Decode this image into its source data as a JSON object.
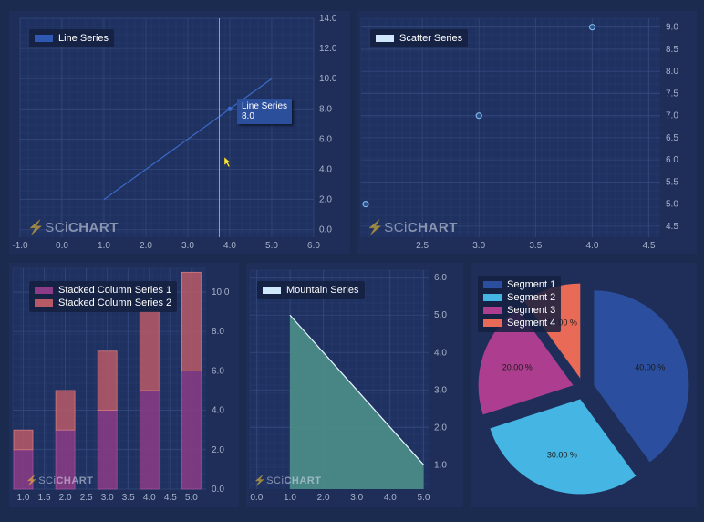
{
  "branding": {
    "logo_thin": "SCi",
    "logo_bold": "CHART"
  },
  "chart_data": [
    {
      "type": "line",
      "legend": [
        "Line Series"
      ],
      "series": [
        {
          "name": "Line Series",
          "x": [
            1.0,
            5.0
          ],
          "y": [
            2.0,
            10.0
          ],
          "color": "#3a6bc7"
        }
      ],
      "xticks": [
        "-1.0",
        "0.0",
        "1.0",
        "2.0",
        "3.0",
        "4.0",
        "5.0",
        "6.0"
      ],
      "yticks": [
        "0.0",
        "2.0",
        "4.0",
        "6.0",
        "8.0",
        "10.0",
        "12.0",
        "14.0"
      ],
      "xlim": [
        -1.0,
        6.0
      ],
      "ylim": [
        -0.5,
        14.0
      ],
      "cursor_x": 3.75,
      "tooltip": {
        "series": "Line Series",
        "value": "8.0"
      },
      "grid": true
    },
    {
      "type": "scatter",
      "legend": [
        "Scatter Series"
      ],
      "series": [
        {
          "name": "Scatter Series",
          "x": [
            2.0,
            3.0,
            4.0
          ],
          "y": [
            5.0,
            7.0,
            9.0
          ],
          "color": "#7fb6e6"
        }
      ],
      "xticks": [
        "2.5",
        "3.0",
        "3.5",
        "4.0",
        "4.5"
      ],
      "yticks": [
        "4.5",
        "5.0",
        "5.5",
        "6.0",
        "6.5",
        "7.0",
        "7.5",
        "8.0",
        "8.5",
        "9.0"
      ],
      "xlim": [
        1.96,
        4.6
      ],
      "ylim": [
        4.25,
        9.2
      ],
      "grid": true
    },
    {
      "type": "bar",
      "stacked": true,
      "legend": [
        "Stacked Column Series 1",
        "Stacked Column Series 2"
      ],
      "x": [
        1.0,
        2.0,
        3.0,
        4.0,
        5.0
      ],
      "series": [
        {
          "name": "Stacked Column Series 1",
          "values": [
            2.0,
            3.0,
            4.0,
            5.0,
            6.0
          ],
          "color": "#8c3b86"
        },
        {
          "name": "Stacked Column Series 2",
          "values": [
            1.0,
            2.0,
            3.0,
            4.0,
            5.0
          ],
          "color": "#b85a66"
        }
      ],
      "xticks": [
        "1.0",
        "1.5",
        "2.0",
        "2.5",
        "3.0",
        "3.5",
        "4.0",
        "4.5",
        "5.0"
      ],
      "yticks": [
        "0.0",
        "2.0",
        "4.0",
        "6.0",
        "8.0",
        "10.0"
      ],
      "xlim": [
        0.75,
        5.35
      ],
      "ylim": [
        0.0,
        11.2
      ],
      "grid": true
    },
    {
      "type": "area",
      "legend": [
        "Mountain Series"
      ],
      "series": [
        {
          "name": "Mountain Series",
          "x": [
            1.0,
            5.0
          ],
          "y": [
            5.0,
            1.0
          ],
          "color": "#4d8f8a"
        }
      ],
      "xticks": [
        "0.0",
        "1.0",
        "2.0",
        "3.0",
        "4.0",
        "5.0"
      ],
      "yticks": [
        "1.0",
        "2.0",
        "3.0",
        "4.0",
        "5.0",
        "6.0"
      ],
      "xlim": [
        -0.2,
        5.15
      ],
      "ylim": [
        0.35,
        6.2
      ],
      "grid": true
    },
    {
      "type": "pie",
      "legend": [
        "Segment 1",
        "Segment 2",
        "Segment 3",
        "Segment 4"
      ],
      "slices": [
        {
          "label": "Segment 1",
          "value": 40,
          "text": "40.00 %",
          "color": "#2b4f9e"
        },
        {
          "label": "Segment 2",
          "value": 30,
          "text": "30.00 %",
          "color": "#45b6e4"
        },
        {
          "label": "Segment 3",
          "value": 20,
          "text": "20.00 %",
          "color": "#ad3e8f"
        },
        {
          "label": "Segment 4",
          "value": 10,
          "text": "10.00 %",
          "color": "#e96a56"
        }
      ]
    }
  ]
}
